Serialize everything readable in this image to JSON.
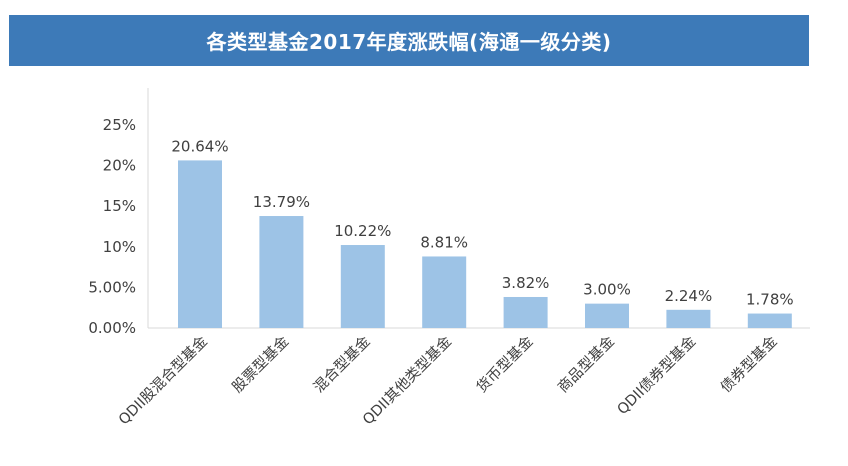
{
  "header": {
    "title": "各类型基金2017年度涨跌幅(海通一级分类)"
  },
  "chart_data": {
    "type": "bar",
    "title": "各类型基金2017年度涨跌幅(海通一级分类)",
    "xlabel": "",
    "ylabel": "",
    "ylim": [
      0,
      25
    ],
    "yticks": [
      {
        "value": 25,
        "label": "25%"
      },
      {
        "value": 20,
        "label": "20%"
      },
      {
        "value": 15,
        "label": "15%"
      },
      {
        "value": 10,
        "label": "10%"
      },
      {
        "value": 5,
        "label": "5.00%"
      },
      {
        "value": 0,
        "label": "0.00%"
      }
    ],
    "categories": [
      "QDII股混合型基金",
      "股票型基金",
      "混合型基金",
      "QDII其他类型基金",
      "货币型基金",
      "商品型基金",
      "QDII债券型基金",
      "债券型基金"
    ],
    "values": [
      20.64,
      13.79,
      10.22,
      8.81,
      3.82,
      3.0,
      2.24,
      1.78
    ],
    "data_labels": [
      "20.64%",
      "13.79%",
      "10.22%",
      "8.81%",
      "3.82%",
      "3.00%",
      "2.24%",
      "1.78%"
    ],
    "bar_color": "#9dc3e6",
    "grid": false,
    "legend": "none"
  }
}
